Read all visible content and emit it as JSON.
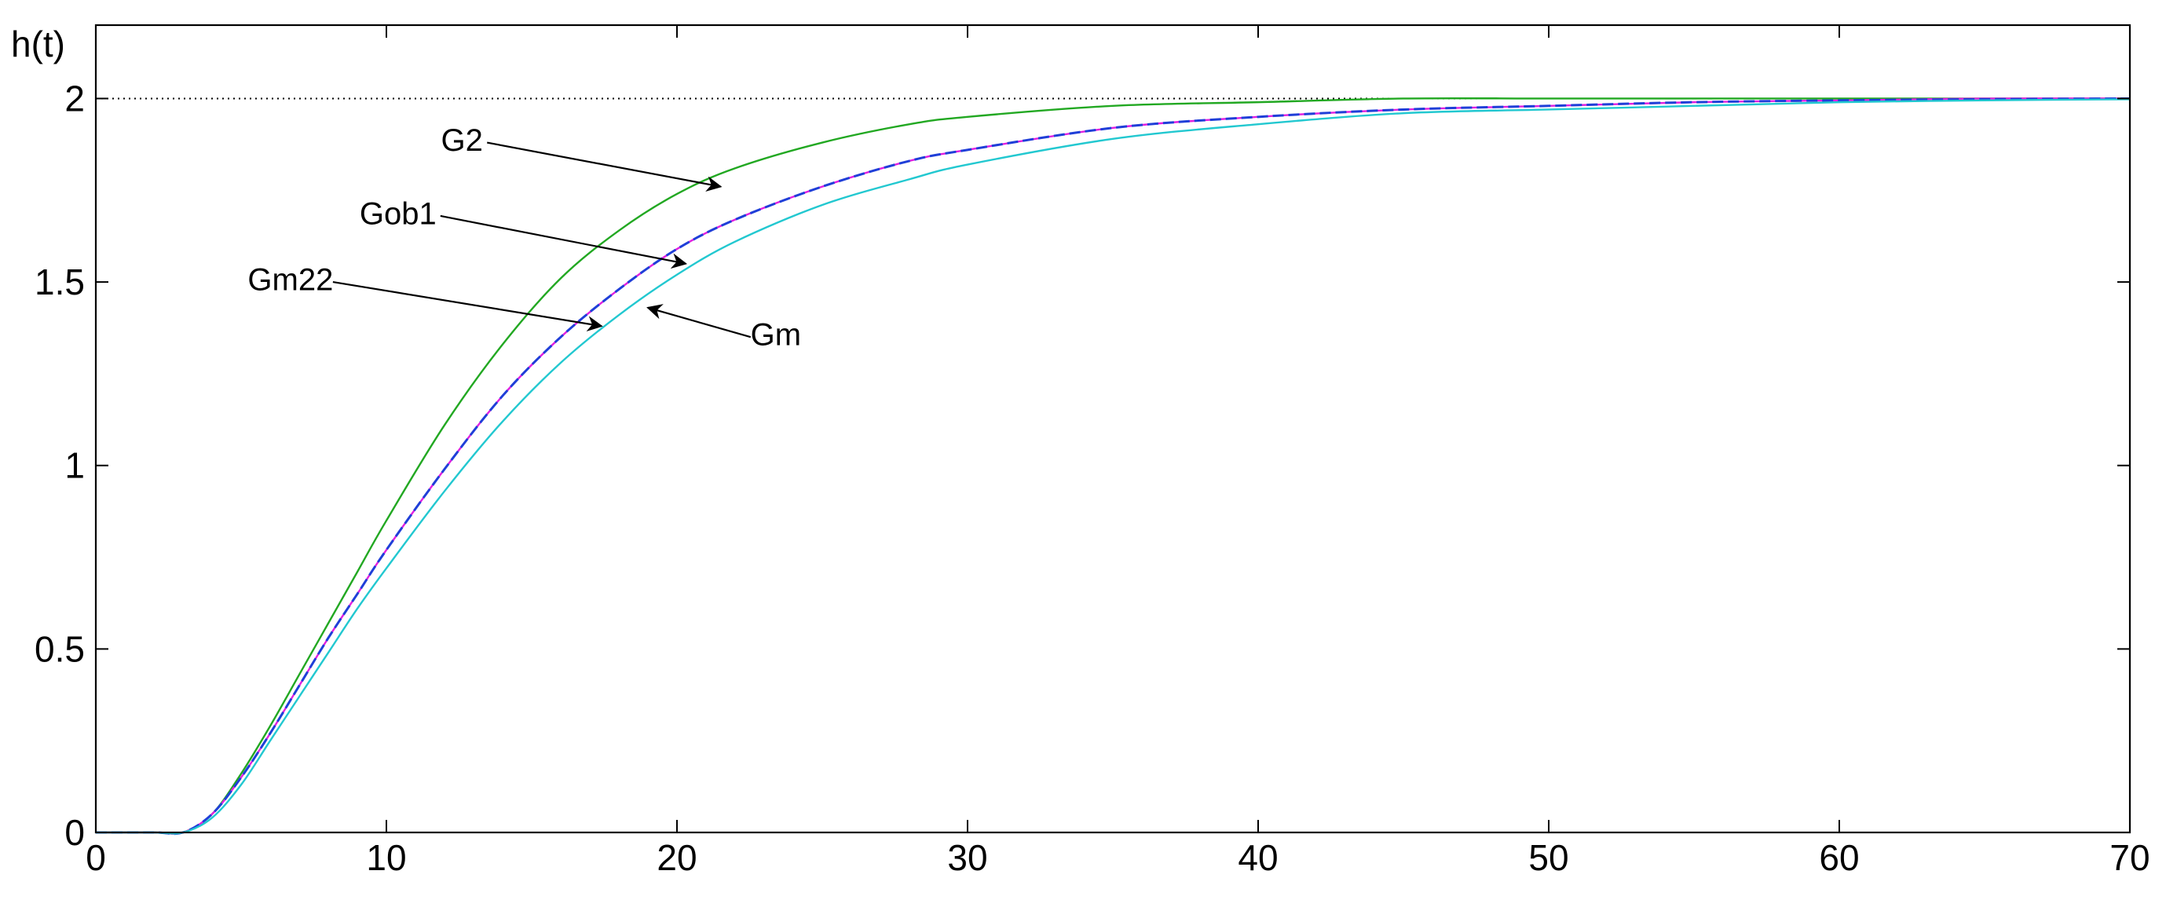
{
  "chart_data": {
    "type": "line",
    "title": "",
    "xlabel": "",
    "ylabel": "h(t)",
    "xlim": [
      0,
      70
    ],
    "ylim": [
      0,
      2.2
    ],
    "grid": false,
    "x_ticks": [
      "0",
      "10",
      "20",
      "30",
      "40",
      "50",
      "60",
      "70"
    ],
    "y_ticks": [
      "0",
      "0.5",
      "1",
      "1.5",
      "2"
    ],
    "reference_line": {
      "y": 2,
      "style": "dotted",
      "color": "#000000"
    },
    "x": [
      0,
      2,
      3,
      4,
      5,
      6,
      7,
      8,
      9,
      10,
      12,
      14,
      16,
      18,
      20,
      22,
      25,
      28,
      30,
      35,
      40,
      45,
      50,
      55,
      60,
      65,
      70
    ],
    "series": [
      {
        "name": "G2",
        "color": "#22a822",
        "values": [
          0,
          0,
          0,
          0.05,
          0.16,
          0.29,
          0.43,
          0.57,
          0.71,
          0.85,
          1.11,
          1.33,
          1.51,
          1.64,
          1.74,
          1.81,
          1.88,
          1.93,
          1.95,
          1.98,
          1.99,
          2.0,
          2.0,
          2.0,
          2.0,
          2.0,
          2.0
        ]
      },
      {
        "name": "Gob1",
        "color": "#e020e0",
        "values": [
          0,
          0,
          0,
          0.05,
          0.15,
          0.27,
          0.4,
          0.53,
          0.65,
          0.77,
          0.99,
          1.19,
          1.35,
          1.48,
          1.59,
          1.67,
          1.76,
          1.83,
          1.86,
          1.92,
          1.95,
          1.97,
          1.98,
          1.99,
          1.995,
          2.0,
          2.0
        ]
      },
      {
        "name": "Gm22",
        "color": "#1f3fd8",
        "values": [
          0,
          0,
          0,
          0.05,
          0.15,
          0.27,
          0.4,
          0.53,
          0.65,
          0.77,
          0.99,
          1.19,
          1.35,
          1.48,
          1.59,
          1.67,
          1.76,
          1.83,
          1.86,
          1.92,
          1.95,
          1.97,
          1.98,
          1.99,
          1.995,
          1.998,
          2.0
        ]
      },
      {
        "name": "Gm",
        "color": "#22c8d0",
        "values": [
          0,
          0,
          0,
          0.04,
          0.13,
          0.25,
          0.37,
          0.49,
          0.61,
          0.72,
          0.93,
          1.12,
          1.28,
          1.41,
          1.52,
          1.61,
          1.71,
          1.78,
          1.82,
          1.89,
          1.93,
          1.96,
          1.97,
          1.98,
          1.99,
          1.995,
          1.998
        ]
      }
    ],
    "annotations": [
      {
        "label": "G2",
        "text_at": [
          12.6,
          1.88
        ],
        "arrow_to": [
          21.5,
          1.76
        ]
      },
      {
        "label": "Gob1",
        "text_at": [
          10.4,
          1.68
        ],
        "arrow_to": [
          20.3,
          1.55
        ]
      },
      {
        "label": "Gm22",
        "text_at": [
          6.7,
          1.5
        ],
        "arrow_to": [
          17.4,
          1.38
        ]
      },
      {
        "label": "Gm",
        "text_at": [
          23.4,
          1.35
        ],
        "arrow_to": [
          19.0,
          1.43
        ]
      }
    ]
  }
}
